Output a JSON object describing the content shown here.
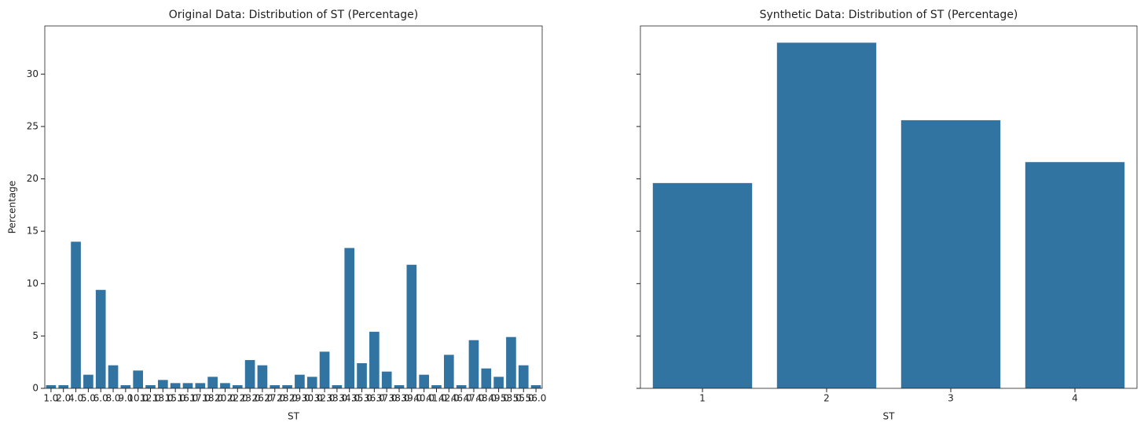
{
  "chart_data": [
    {
      "type": "bar",
      "title": "Original Data: Distribution of ST (Percentage)",
      "xlabel": "ST",
      "ylabel": "Percentage",
      "categories": [
        "1.0",
        "2.0",
        "4.0",
        "5.0",
        "6.0",
        "8.0",
        "9.0",
        "10.0",
        "12.0",
        "13.0",
        "15.0",
        "16.0",
        "17.0",
        "18.0",
        "20.0",
        "22.0",
        "23.0",
        "26.0",
        "27.0",
        "28.0",
        "29.0",
        "30.0",
        "32.0",
        "33.0",
        "34.0",
        "35.0",
        "36.0",
        "37.0",
        "38.0",
        "39.0",
        "40.0",
        "41.0",
        "42.0",
        "46.0",
        "47.0",
        "48.0",
        "49.0",
        "53.0",
        "55.0",
        "56.0"
      ],
      "values": [
        0.3,
        0.3,
        14.0,
        1.3,
        9.4,
        2.2,
        0.3,
        1.7,
        0.3,
        0.8,
        0.5,
        0.5,
        0.5,
        1.1,
        0.5,
        0.3,
        2.7,
        2.2,
        0.3,
        0.3,
        1.3,
        1.1,
        3.5,
        0.3,
        13.4,
        2.4,
        5.4,
        1.6,
        0.3,
        11.8,
        1.3,
        0.3,
        3.2,
        0.3,
        4.6,
        1.9,
        1.1,
        4.9,
        2.2,
        0.3
      ],
      "color": "#3274a1",
      "ylim": [
        0,
        34.6
      ],
      "yticks": [
        0,
        5,
        10,
        15,
        20,
        25,
        30
      ]
    },
    {
      "type": "bar",
      "title": "Synthetic Data: Distribution of ST (Percentage)",
      "xlabel": "ST",
      "categories": [
        "1",
        "2",
        "3",
        "4"
      ],
      "values": [
        19.6,
        33.0,
        25.6,
        21.6
      ],
      "color": "#3274a1",
      "ylim": [
        0,
        34.6
      ],
      "yticks": [
        0,
        5,
        10,
        15,
        20,
        25,
        30
      ]
    }
  ]
}
